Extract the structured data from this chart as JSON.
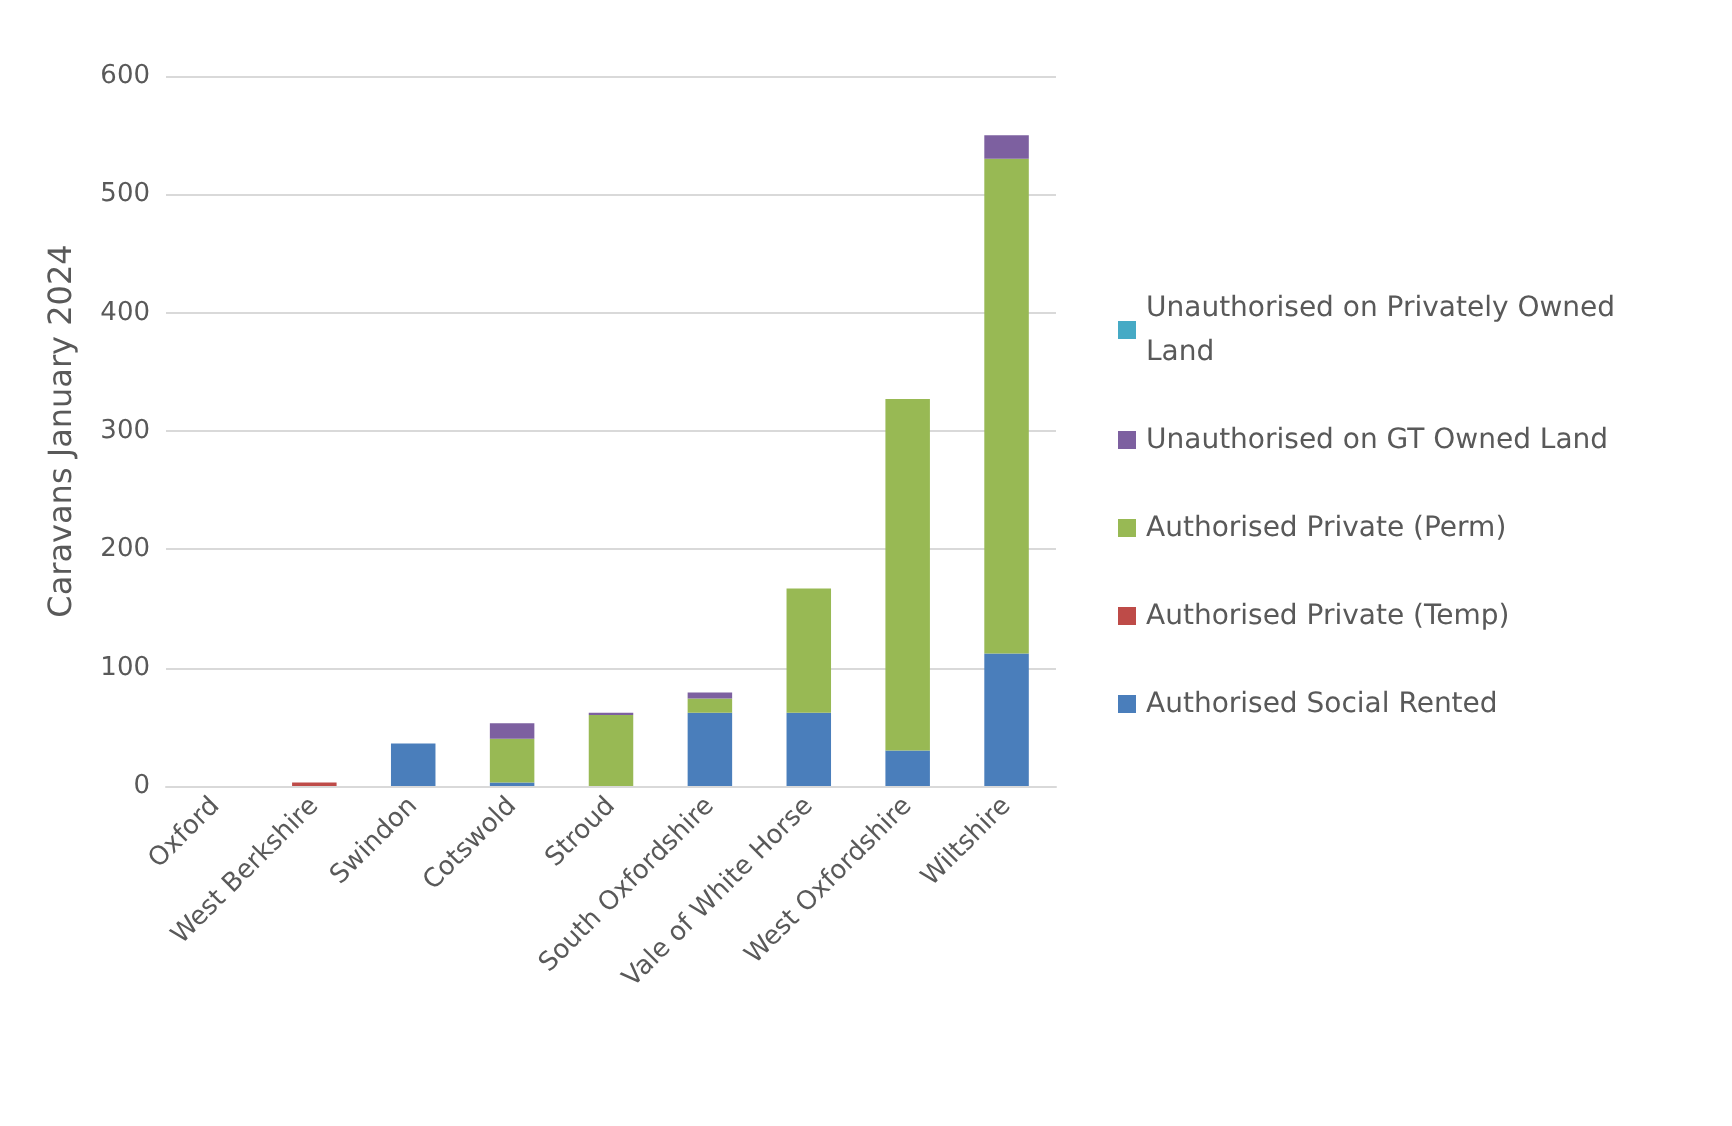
{
  "chart_data": {
    "type": "bar",
    "stacked": true,
    "ylabel": "Caravans January 2024",
    "categories": [
      "Oxford",
      "West Berkshire",
      "Swindon",
      "Cotswold",
      "Stroud",
      "South Oxfordshire",
      "Vale of White Horse",
      "West Oxfordshire",
      "Wiltshire"
    ],
    "series": [
      {
        "name": "Authorised Social Rented",
        "color": "#4a7ebb",
        "values": [
          0,
          0,
          36,
          3,
          0,
          62,
          62,
          30,
          112
        ]
      },
      {
        "name": "Authorised Private (Temp)",
        "color": "#be4b48",
        "values": [
          0,
          3,
          0,
          0,
          0,
          0,
          0,
          0,
          0
        ]
      },
      {
        "name": "Authorised Private (Perm)",
        "color": "#98b954",
        "values": [
          0,
          0,
          0,
          37,
          60,
          12,
          105,
          297,
          418
        ]
      },
      {
        "name": "Unauthorised on GT Owned Land",
        "color": "#7d60a0",
        "values": [
          0,
          0,
          0,
          13,
          2,
          5,
          0,
          0,
          20
        ]
      },
      {
        "name": "Unauthorised on Privately Owned Land",
        "color": "#46aac5",
        "values": [
          0,
          0,
          0,
          0,
          0,
          0,
          0,
          0,
          0
        ]
      }
    ],
    "ylim": [
      0,
      600
    ],
    "yticks": [
      0,
      100,
      200,
      300,
      400,
      500,
      600
    ],
    "grid": "y",
    "legend": "right"
  }
}
